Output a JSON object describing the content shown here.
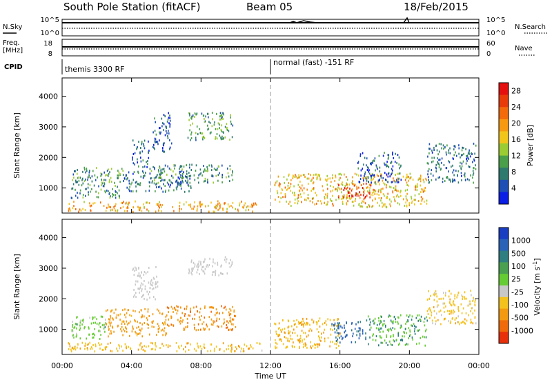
{
  "header": {
    "station": "South Pole Station (fitACF)",
    "beam": "Beam 05",
    "date": "18/Feb/2015"
  },
  "strip": {
    "nsky_label": "N.Sky",
    "nsky_ticks": [
      "10^5",
      "10^0"
    ],
    "nsearch_label": "N.Search",
    "nsearch_ticks": [
      "10^5",
      "10^0"
    ],
    "freq_label": "Freq.",
    "freq_unit": "[MHz]",
    "freq_ticks": [
      "18",
      "8"
    ],
    "nave_label": "Nave",
    "nave_ticks": [
      "60",
      "0"
    ],
    "cpid_label": "CPID",
    "cpid_segments": [
      {
        "start_hour": 0,
        "label": "themis 3300 RF"
      },
      {
        "start_hour": 12,
        "label": "normal (fast) -151 RF"
      }
    ]
  },
  "chart_data": [
    {
      "type": "heatmap",
      "name": "power-panel",
      "xlabel": "",
      "ylabel": "Slant Range [km]",
      "xlim": [
        0,
        24
      ],
      "ylim": [
        180,
        4600
      ],
      "y_ticks": [
        "1000",
        "2000",
        "3000",
        "4000"
      ],
      "colorbar": {
        "label": "Power [dB]",
        "ticks": [
          "4",
          "8",
          "12",
          "16",
          "20",
          "24",
          "28"
        ],
        "range": [
          0,
          30
        ],
        "colors": [
          "#0a1ee6",
          "#1f4fb4",
          "#2f7a6e",
          "#4aa04a",
          "#9ccc33",
          "#f2c51b",
          "#f79a12",
          "#f26a0a",
          "#e93b09",
          "#e60f0f"
        ]
      },
      "echo_regions": [
        {
          "t": [
            0.3,
            11.2
          ],
          "r": [
            250,
            600
          ],
          "v": 19
        },
        {
          "t": [
            0.5,
            3.5
          ],
          "r": [
            700,
            1700
          ],
          "v": 9
        },
        {
          "t": [
            3.5,
            7.5
          ],
          "r": [
            900,
            1600
          ],
          "v": 7
        },
        {
          "t": [
            5.0,
            9.8
          ],
          "r": [
            1200,
            1800
          ],
          "v": 9
        },
        {
          "t": [
            4.0,
            5.0
          ],
          "r": [
            1700,
            2600
          ],
          "v": 6
        },
        {
          "t": [
            5.2,
            6.3
          ],
          "r": [
            2200,
            3500
          ],
          "v": 5
        },
        {
          "t": [
            7.2,
            9.8
          ],
          "r": [
            2600,
            3500
          ],
          "v": 10
        },
        {
          "t": [
            12.2,
            21.0
          ],
          "r": [
            400,
            1500
          ],
          "v": 17
        },
        {
          "t": [
            15.8,
            17.8
          ],
          "r": [
            700,
            1200
          ],
          "v": 26
        },
        {
          "t": [
            17.0,
            19.5
          ],
          "r": [
            1200,
            2200
          ],
          "v": 5
        },
        {
          "t": [
            21.0,
            23.8
          ],
          "r": [
            1200,
            2500
          ],
          "v": 7
        }
      ]
    },
    {
      "type": "heatmap",
      "name": "velocity-panel",
      "xlabel": "Time UT",
      "ylabel": "Slant Range [km]",
      "xlim": [
        0,
        24
      ],
      "ylim": [
        180,
        4600
      ],
      "x_ticks": [
        "00:00",
        "04:00",
        "08:00",
        "12:00",
        "16:00",
        "20:00",
        "00:00"
      ],
      "y_ticks": [
        "1000",
        "2000",
        "3000",
        "4000"
      ],
      "colorbar": {
        "label": "Velocity [m s-1]",
        "ticks": [
          "1000",
          "500",
          "100",
          "25",
          "-25",
          "-100",
          "-500",
          "-1000"
        ],
        "colors": [
          "#1a3ec2",
          "#2a62b8",
          "#2f7e80",
          "#4aa050",
          "#66cc33",
          "#c8c8c8",
          "#f4c21d",
          "#f39a10",
          "#f06a0a",
          "#e8300a"
        ]
      },
      "echo_regions": [
        {
          "t": [
            0.3,
            11.5
          ],
          "r": [
            300,
            600
          ],
          "v": -80
        },
        {
          "t": [
            0.5,
            2.5
          ],
          "r": [
            700,
            1500
          ],
          "v": 60
        },
        {
          "t": [
            2.5,
            6.0
          ],
          "r": [
            800,
            1700
          ],
          "v": -200
        },
        {
          "t": [
            6.0,
            10.0
          ],
          "r": [
            1000,
            1800
          ],
          "v": -400
        },
        {
          "t": [
            4.0,
            5.5
          ],
          "r": [
            2000,
            3100
          ],
          "v": 0
        },
        {
          "t": [
            7.2,
            9.8
          ],
          "r": [
            2800,
            3400
          ],
          "v": 0
        },
        {
          "t": [
            12.2,
            16.0
          ],
          "r": [
            400,
            1400
          ],
          "v": -80
        },
        {
          "t": [
            15.5,
            17.5
          ],
          "r": [
            600,
            1300
          ],
          "v": 600
        },
        {
          "t": [
            17.5,
            21.0
          ],
          "r": [
            500,
            1500
          ],
          "v": 80
        },
        {
          "t": [
            21.0,
            23.8
          ],
          "r": [
            1200,
            2300
          ],
          "v": -60
        }
      ]
    }
  ]
}
